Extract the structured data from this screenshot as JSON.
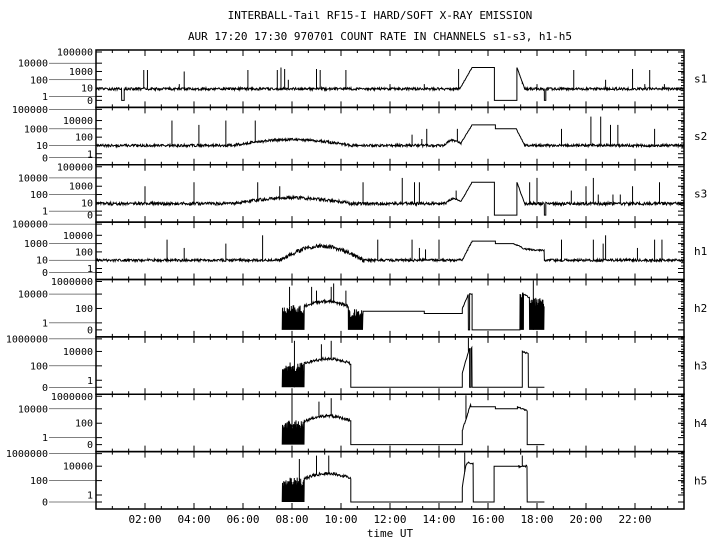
{
  "chart_data": {
    "type": "line",
    "title": "INTERBALL-Tail RF15-I HARD/SOFT X-RAY EMISSION",
    "subtitle": "AUR 17:20 17:30 970701  COUNT RATE IN CHANNELS s1-s3, h1-h5",
    "xlabel": "time UT",
    "xlim": [
      0,
      24
    ],
    "x_unit": "hours UT",
    "y_scale": "log (with 0 level)",
    "grid": false,
    "x_tick_labels": [
      "02:00",
      "04:00",
      "06:00",
      "08:00",
      "10:00",
      "12:00",
      "14:00",
      "16:00",
      "18:00",
      "20:00",
      "22:00"
    ],
    "x_tick_hours": [
      2,
      4,
      6,
      8,
      10,
      12,
      14,
      16,
      18,
      20,
      22
    ],
    "y_tick_labels_soft": [
      "100000",
      "10000",
      "1000",
      "100",
      "10",
      "1",
      "0"
    ],
    "y_tick_labels_hard": [
      "1000000",
      "10000",
      "100",
      "1",
      "0"
    ],
    "line_color": "#000000",
    "series": [
      {
        "name": "s1",
        "scale": "soft",
        "segments": [
          {
            "type": "noise",
            "t0": 0,
            "t1": 1.05,
            "v0": 8,
            "v1": 8,
            "jitter": 0.15
          },
          {
            "type": "zero",
            "t0": 1.05,
            "t1": 1.15
          },
          {
            "type": "noise",
            "t0": 1.15,
            "t1": 14.85,
            "v0": 8,
            "v1": 8,
            "jitter": 0.15
          },
          {
            "type": "noise",
            "t0": 14.85,
            "t1": 15.35,
            "v0": 8,
            "v1": 3000,
            "jitter": 0.05
          },
          {
            "type": "flat",
            "t0": 15.35,
            "t1": 16.26,
            "v0": 3000
          },
          {
            "type": "zero",
            "t0": 16.26,
            "t1": 17.18
          },
          {
            "type": "noise",
            "t0": 17.18,
            "t1": 17.5,
            "v0": 3000,
            "v1": 8,
            "jitter": 0.05
          },
          {
            "type": "noise",
            "t0": 17.5,
            "t1": 18.3,
            "v0": 8,
            "v1": 8,
            "jitter": 0.15
          },
          {
            "type": "zero",
            "t0": 18.3,
            "t1": 18.36
          },
          {
            "type": "noise",
            "t0": 18.36,
            "t1": 24,
            "v0": 8,
            "v1": 8,
            "jitter": 0.15
          }
        ],
        "spikes": [
          [
            1.95,
            1500
          ],
          [
            2.1,
            1500
          ],
          [
            3.4,
            30
          ],
          [
            3.6,
            1000
          ],
          [
            6.2,
            1500
          ],
          [
            7.4,
            1500
          ],
          [
            7.55,
            3000
          ],
          [
            7.7,
            2000
          ],
          [
            7.85,
            100
          ],
          [
            9.0,
            2000
          ],
          [
            9.15,
            1500
          ],
          [
            10.2,
            1500
          ],
          [
            12.0,
            30
          ],
          [
            13.4,
            30
          ],
          [
            14.8,
            2000
          ],
          [
            17.4,
            30
          ],
          [
            18.0,
            30
          ],
          [
            19.5,
            1500
          ],
          [
            20.8,
            100
          ],
          [
            21.9,
            2000
          ],
          [
            22.4,
            30
          ],
          [
            22.6,
            1500
          ],
          [
            23.2,
            30
          ]
        ]
      },
      {
        "name": "s2",
        "scale": "soft",
        "segments": [
          {
            "type": "noise",
            "t0": 0,
            "t1": 5.7,
            "v0": 10,
            "v1": 10,
            "jitter": 0.15
          },
          {
            "type": "noise",
            "t0": 5.7,
            "t1": 10.3,
            "v0": 12,
            "vm": 50,
            "v1": 12,
            "jitter": 0.15
          },
          {
            "type": "noise",
            "t0": 10.3,
            "t1": 14.2,
            "v0": 10,
            "v1": 10,
            "jitter": 0.15
          },
          {
            "type": "noise",
            "t0": 14.2,
            "t1": 14.9,
            "v0": 10,
            "vm": 40,
            "v1": 20,
            "jitter": 0.12
          },
          {
            "type": "noise",
            "t0": 14.9,
            "t1": 15.35,
            "v0": 20,
            "v1": 3000,
            "jitter": 0.05
          },
          {
            "type": "flat",
            "t0": 15.35,
            "t1": 16.3,
            "v0": 3000
          },
          {
            "type": "flat",
            "t0": 16.3,
            "t1": 17.15,
            "v0": 1000
          },
          {
            "type": "noise",
            "t0": 17.15,
            "t1": 17.5,
            "v0": 1000,
            "v1": 10,
            "jitter": 0.05
          },
          {
            "type": "noise",
            "t0": 17.5,
            "t1": 24,
            "v0": 10,
            "v1": 10,
            "jitter": 0.15
          }
        ],
        "spikes": [
          [
            3.1,
            10000
          ],
          [
            4.2,
            3000
          ],
          [
            5.3,
            10000
          ],
          [
            6.5,
            10000
          ],
          [
            12.9,
            200
          ],
          [
            13.3,
            60
          ],
          [
            13.5,
            1000
          ],
          [
            14.75,
            1000
          ],
          [
            19.0,
            1000
          ],
          [
            20.2,
            30000
          ],
          [
            20.6,
            30000
          ],
          [
            21.0,
            3000
          ],
          [
            21.3,
            3000
          ],
          [
            22.8,
            1000
          ]
        ]
      },
      {
        "name": "s3",
        "scale": "soft",
        "segments": [
          {
            "type": "noise",
            "t0": 0,
            "t1": 5.7,
            "v0": 8,
            "v1": 8,
            "jitter": 0.18
          },
          {
            "type": "noise",
            "t0": 5.7,
            "t1": 10.3,
            "v0": 10,
            "vm": 40,
            "v1": 10,
            "jitter": 0.18
          },
          {
            "type": "noise",
            "t0": 10.3,
            "t1": 14.3,
            "v0": 8,
            "v1": 8,
            "jitter": 0.18
          },
          {
            "type": "noise",
            "t0": 14.3,
            "t1": 14.9,
            "v0": 10,
            "vm": 30,
            "v1": 15,
            "jitter": 0.12
          },
          {
            "type": "noise",
            "t0": 14.9,
            "t1": 15.35,
            "v0": 15,
            "v1": 3000,
            "jitter": 0.05
          },
          {
            "type": "flat",
            "t0": 15.35,
            "t1": 16.26,
            "v0": 3000
          },
          {
            "type": "zero",
            "t0": 16.26,
            "t1": 17.18
          },
          {
            "type": "noise",
            "t0": 17.18,
            "t1": 17.5,
            "v0": 3000,
            "v1": 8,
            "jitter": 0.05
          },
          {
            "type": "noise",
            "t0": 17.5,
            "t1": 18.3,
            "v0": 8,
            "v1": 8,
            "jitter": 0.18
          },
          {
            "type": "zero",
            "t0": 18.3,
            "t1": 18.36
          },
          {
            "type": "noise",
            "t0": 18.36,
            "t1": 24,
            "v0": 8,
            "v1": 8,
            "jitter": 0.18
          }
        ],
        "spikes": [
          [
            2.0,
            1000
          ],
          [
            4.0,
            3000
          ],
          [
            6.6,
            3000
          ],
          [
            7.5,
            1000
          ],
          [
            10.9,
            3000
          ],
          [
            12.5,
            10000
          ],
          [
            13.0,
            3000
          ],
          [
            13.2,
            3000
          ],
          [
            14.7,
            300
          ],
          [
            17.7,
            3000
          ],
          [
            18.0,
            10000
          ],
          [
            19.4,
            300
          ],
          [
            20.0,
            1000
          ],
          [
            20.3,
            10000
          ],
          [
            20.5,
            100
          ],
          [
            21.1,
            100
          ],
          [
            21.4,
            100
          ],
          [
            21.9,
            1000
          ],
          [
            23.0,
            3000
          ]
        ]
      },
      {
        "name": "h1",
        "scale": "soft",
        "segments": [
          {
            "type": "noise",
            "t0": 0,
            "t1": 7.5,
            "v0": 10,
            "v1": 10,
            "jitter": 0.15
          },
          {
            "type": "noise",
            "t0": 7.5,
            "t1": 10.9,
            "v0": 10,
            "vm": 500,
            "v1": 10,
            "jitter": 0.25
          },
          {
            "type": "noise",
            "t0": 10.9,
            "t1": 14.95,
            "v0": 10,
            "v1": 10,
            "jitter": 0.15
          },
          {
            "type": "noise",
            "t0": 14.95,
            "t1": 15.35,
            "v0": 10,
            "v1": 2000,
            "jitter": 0.08
          },
          {
            "type": "flat",
            "t0": 15.35,
            "t1": 16.3,
            "v0": 2000
          },
          {
            "type": "flat",
            "t0": 16.3,
            "t1": 17.05,
            "v0": 1000
          },
          {
            "type": "noise",
            "t0": 17.05,
            "t1": 17.55,
            "v0": 1000,
            "v1": 200,
            "jitter": 0.1
          },
          {
            "type": "noise",
            "t0": 17.55,
            "t1": 18.3,
            "v0": 200,
            "v1": 150,
            "jitter": 0.1
          },
          {
            "type": "noise",
            "t0": 18.3,
            "t1": 24,
            "v0": 10,
            "v1": 10,
            "jitter": 0.15
          }
        ],
        "spikes": [
          [
            2.9,
            3000
          ],
          [
            3.6,
            300
          ],
          [
            5.3,
            1000
          ],
          [
            6.8,
            10000
          ],
          [
            11.5,
            3000
          ],
          [
            12.9,
            3000
          ],
          [
            13.2,
            300
          ],
          [
            13.45,
            200
          ],
          [
            14.0,
            3000
          ],
          [
            19.0,
            3000
          ],
          [
            20.3,
            3000
          ],
          [
            20.7,
            1000
          ],
          [
            20.8,
            10000
          ],
          [
            22.1,
            300
          ],
          [
            22.8,
            3000
          ],
          [
            23.1,
            3000
          ]
        ]
      },
      {
        "name": "h2",
        "scale": "hard",
        "segments": [
          {
            "type": "dense",
            "t0": 7.6,
            "t1": 8.5,
            "v0": 300
          },
          {
            "type": "noise",
            "t0": 8.5,
            "t1": 10.3,
            "v0": 200,
            "vm": 1000,
            "v1": 200,
            "jitter": 0.2
          },
          {
            "type": "dense",
            "t0": 10.3,
            "t1": 10.9,
            "v0": 100
          },
          {
            "type": "flat",
            "t0": 10.9,
            "t1": 13.4,
            "v0": 40
          },
          {
            "type": "flat",
            "t0": 13.4,
            "t1": 14.95,
            "v0": 20
          },
          {
            "type": "noise",
            "t0": 14.95,
            "t1": 15.2,
            "v0": 100,
            "v1": 10000,
            "jitter": 0.1
          },
          {
            "type": "zero",
            "t0": 15.2,
            "t1": 15.25
          },
          {
            "type": "noise",
            "t0": 15.25,
            "t1": 15.35,
            "v0": 10000,
            "v1": 10000,
            "jitter": 0.1
          },
          {
            "type": "zero",
            "t0": 15.35,
            "t1": 17.3
          },
          {
            "type": "dense",
            "t0": 17.3,
            "t1": 17.45,
            "v0": 30000
          },
          {
            "type": "noise",
            "t0": 17.45,
            "t1": 17.7,
            "v0": 10000,
            "v1": 3000,
            "jitter": 0.1
          },
          {
            "type": "dense",
            "t0": 17.7,
            "t1": 18.3,
            "v0": 3000
          }
        ],
        "spikes": [
          [
            7.9,
            100000
          ],
          [
            8.8,
            100000
          ],
          [
            9.0,
            30000
          ],
          [
            9.6,
            100000
          ],
          [
            9.7,
            300000
          ],
          [
            10.2,
            30000
          ],
          [
            17.85,
            1000000
          ]
        ]
      },
      {
        "name": "h3",
        "scale": "hard",
        "segments": [
          {
            "type": "dense",
            "t0": 7.6,
            "t1": 8.5,
            "v0": 300
          },
          {
            "type": "noise",
            "t0": 8.5,
            "t1": 10.4,
            "v0": 200,
            "vm": 1000,
            "v1": 200,
            "jitter": 0.2
          },
          {
            "type": "zero",
            "t0": 10.4,
            "t1": 14.95
          },
          {
            "type": "noise",
            "t0": 14.95,
            "t1": 15.25,
            "v0": 10,
            "v1": 30000,
            "jitter": 0.1
          },
          {
            "type": "zero",
            "t0": 15.25,
            "t1": 15.3
          },
          {
            "type": "noise",
            "t0": 15.3,
            "t1": 15.35,
            "v0": 30000,
            "v1": 30000,
            "jitter": 0.1
          },
          {
            "type": "zero",
            "t0": 15.35,
            "t1": 17.4
          },
          {
            "type": "noise",
            "t0": 17.4,
            "t1": 17.65,
            "v0": 10000,
            "v1": 5000,
            "jitter": 0.1
          },
          {
            "type": "zero",
            "t0": 17.65,
            "t1": 18.3
          }
        ],
        "spikes": [
          [
            8.1,
            300000
          ],
          [
            9.2,
            100000
          ],
          [
            9.6,
            300000
          ],
          [
            15.2,
            1000000
          ]
        ]
      },
      {
        "name": "h4",
        "scale": "hard",
        "segments": [
          {
            "type": "dense",
            "t0": 7.6,
            "t1": 8.5,
            "v0": 300
          },
          {
            "type": "noise",
            "t0": 8.5,
            "t1": 10.4,
            "v0": 200,
            "vm": 1000,
            "v1": 200,
            "jitter": 0.2
          },
          {
            "type": "zero",
            "t0": 10.4,
            "t1": 14.95
          },
          {
            "type": "noise",
            "t0": 14.95,
            "t1": 15.3,
            "v0": 10,
            "v1": 50000,
            "jitter": 0.1
          },
          {
            "type": "flat",
            "t0": 15.3,
            "t1": 16.3,
            "v0": 20000
          },
          {
            "type": "flat",
            "t0": 16.3,
            "t1": 17.2,
            "v0": 10000
          },
          {
            "type": "noise",
            "t0": 17.2,
            "t1": 17.6,
            "v0": 20000,
            "v1": 5000,
            "jitter": 0.1
          },
          {
            "type": "zero",
            "t0": 17.6,
            "t1": 18.3
          }
        ],
        "spikes": [
          [
            8.0,
            300000
          ],
          [
            9.1,
            100000
          ],
          [
            9.6,
            300000
          ],
          [
            15.1,
            1000000
          ]
        ]
      },
      {
        "name": "h5",
        "scale": "hard",
        "segments": [
          {
            "type": "dense",
            "t0": 7.6,
            "t1": 8.5,
            "v0": 300
          },
          {
            "type": "noise",
            "t0": 8.5,
            "t1": 10.4,
            "v0": 200,
            "vm": 1000,
            "v1": 200,
            "jitter": 0.2
          },
          {
            "type": "zero",
            "t0": 10.4,
            "t1": 14.95
          },
          {
            "type": "noise",
            "t0": 14.95,
            "t1": 15.4,
            "v0": 10,
            "vm": 30000,
            "v1": 20000,
            "jitter": 0.1
          },
          {
            "type": "zero",
            "t0": 15.4,
            "t1": 16.25
          },
          {
            "type": "flat",
            "t0": 16.25,
            "t1": 17.25,
            "v0": 10000
          },
          {
            "type": "noise",
            "t0": 17.25,
            "t1": 17.6,
            "v0": 10000,
            "v1": 10000,
            "jitter": 0.15
          },
          {
            "type": "zero",
            "t0": 17.6,
            "t1": 18.3
          }
        ],
        "spikes": [
          [
            8.3,
            100000
          ],
          [
            9.0,
            300000
          ],
          [
            9.5,
            300000
          ],
          [
            15.05,
            1000000
          ],
          [
            17.4,
            300000
          ]
        ]
      }
    ]
  }
}
